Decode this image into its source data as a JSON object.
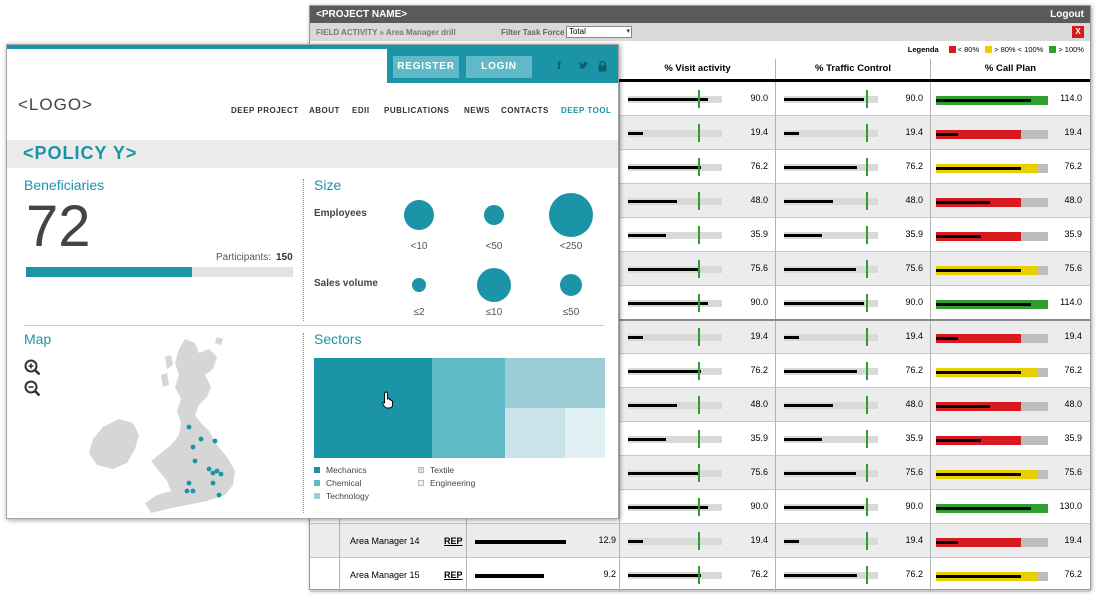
{
  "dashboard": {
    "project_name": "<PROJECT NAME>",
    "logout_label": "Logout",
    "breadcrumb": "FIELD ACTIVITY » Area Manager drill",
    "filter_label": "Filter Task Force",
    "filter_value": "Total",
    "close_label": "X",
    "legend": {
      "title": "Legenda",
      "items": [
        {
          "label": "< 80%",
          "color": "#d71920"
        },
        {
          "label": "> 80% < 100%",
          "color": "#e8d000"
        },
        {
          "label": "> 100%",
          "color": "#2f9d2f"
        }
      ]
    },
    "columns": [
      "% Visit activity",
      "% Traffic Control",
      "% Call Plan"
    ],
    "rows": [
      {
        "name": "",
        "rep": "",
        "first_val": "",
        "first_fill": 0,
        "visit": "90.0",
        "visit_fill": 0.85,
        "traffic": "90.0",
        "traffic_fill": 0.85,
        "callplan": "114.0",
        "cp_fill": 1.0,
        "cp_color": "#2f9d2f",
        "cp_bar": 0.85
      },
      {
        "name": "",
        "rep": "",
        "first_val": "",
        "first_fill": 0,
        "visit": "19.4",
        "visit_fill": 0.16,
        "traffic": "19.4",
        "traffic_fill": 0.16,
        "callplan": "19.4",
        "cp_fill": 0.76,
        "cp_color": "#d71920",
        "cp_bar": 0.2
      },
      {
        "name": "",
        "rep": "",
        "first_val": "",
        "first_fill": 0,
        "visit": "76.2",
        "visit_fill": 0.78,
        "traffic": "76.2",
        "traffic_fill": 0.78,
        "callplan": "76.2",
        "cp_fill": 0.9,
        "cp_color": "#e8d000",
        "cp_bar": 0.76
      },
      {
        "name": "",
        "rep": "",
        "first_val": "",
        "first_fill": 0,
        "visit": "48.0",
        "visit_fill": 0.52,
        "traffic": "48.0",
        "traffic_fill": 0.52,
        "callplan": "48.0",
        "cp_fill": 0.76,
        "cp_color": "#d71920",
        "cp_bar": 0.48
      },
      {
        "name": "",
        "rep": "",
        "first_val": "",
        "first_fill": 0,
        "visit": "35.9",
        "visit_fill": 0.4,
        "traffic": "35.9",
        "traffic_fill": 0.4,
        "callplan": "35.9",
        "cp_fill": 0.76,
        "cp_color": "#d71920",
        "cp_bar": 0.4
      },
      {
        "name": "",
        "rep": "",
        "first_val": "",
        "first_fill": 0,
        "visit": "75.6",
        "visit_fill": 0.77,
        "traffic": "75.6",
        "traffic_fill": 0.77,
        "callplan": "75.6",
        "cp_fill": 0.9,
        "cp_color": "#e8d000",
        "cp_bar": 0.76
      },
      {
        "name": "",
        "rep": "",
        "first_val": "",
        "first_fill": 0,
        "visit": "90.0",
        "visit_fill": 0.85,
        "traffic": "90.0",
        "traffic_fill": 0.85,
        "callplan": "114.0",
        "cp_fill": 1.0,
        "cp_color": "#2f9d2f",
        "cp_bar": 0.85
      },
      {
        "name": "",
        "rep": "",
        "first_val": "",
        "first_fill": 0,
        "visit": "19.4",
        "visit_fill": 0.16,
        "traffic": "19.4",
        "traffic_fill": 0.16,
        "callplan": "19.4",
        "cp_fill": 0.76,
        "cp_color": "#d71920",
        "cp_bar": 0.2
      },
      {
        "name": "",
        "rep": "",
        "first_val": "",
        "first_fill": 0,
        "visit": "76.2",
        "visit_fill": 0.78,
        "traffic": "76.2",
        "traffic_fill": 0.78,
        "callplan": "76.2",
        "cp_fill": 0.9,
        "cp_color": "#e8d000",
        "cp_bar": 0.76
      },
      {
        "name": "",
        "rep": "",
        "first_val": "",
        "first_fill": 0,
        "visit": "48.0",
        "visit_fill": 0.52,
        "traffic": "48.0",
        "traffic_fill": 0.52,
        "callplan": "48.0",
        "cp_fill": 0.76,
        "cp_color": "#d71920",
        "cp_bar": 0.48
      },
      {
        "name": "",
        "rep": "",
        "first_val": "",
        "first_fill": 0,
        "visit": "35.9",
        "visit_fill": 0.4,
        "traffic": "35.9",
        "traffic_fill": 0.4,
        "callplan": "35.9",
        "cp_fill": 0.76,
        "cp_color": "#d71920",
        "cp_bar": 0.4
      },
      {
        "name": "",
        "rep": "",
        "first_val": "",
        "first_fill": 0,
        "visit": "75.6",
        "visit_fill": 0.77,
        "traffic": "75.6",
        "traffic_fill": 0.77,
        "callplan": "75.6",
        "cp_fill": 0.9,
        "cp_color": "#e8d000",
        "cp_bar": 0.76
      },
      {
        "name": "",
        "rep": "",
        "first_val": "",
        "first_fill": 0,
        "visit": "90.0",
        "visit_fill": 0.85,
        "traffic": "90.0",
        "traffic_fill": 0.85,
        "callplan": "130.0",
        "cp_fill": 1.0,
        "cp_color": "#2f9d2f",
        "cp_bar": 0.85
      },
      {
        "name": "Area Manager 14",
        "rep": "REP",
        "first_val": "12.9",
        "first_fill": 0.7,
        "visit": "19.4",
        "visit_fill": 0.16,
        "traffic": "19.4",
        "traffic_fill": 0.16,
        "callplan": "19.4",
        "cp_fill": 0.76,
        "cp_color": "#d71920",
        "cp_bar": 0.2
      },
      {
        "name": "Area Manager 15",
        "rep": "REP",
        "first_val": "9.2",
        "first_fill": 0.53,
        "visit": "76.2",
        "visit_fill": 0.78,
        "traffic": "76.2",
        "traffic_fill": 0.78,
        "callplan": "76.2",
        "cp_fill": 0.9,
        "cp_color": "#e8d000",
        "cp_bar": 0.76
      }
    ]
  },
  "policy": {
    "auth": {
      "register": "REGISTER",
      "login": "LOGIN"
    },
    "social": {
      "facebook": "f",
      "twitter": "t",
      "lock": "lock"
    },
    "logo": "<LOGO>",
    "nav": [
      {
        "label": "DEEP PROJECT",
        "active": false
      },
      {
        "label": "ABOUT",
        "active": false
      },
      {
        "label": "EDII",
        "active": false
      },
      {
        "label": "PUBLICATIONS",
        "active": false
      },
      {
        "label": "NEWS",
        "active": false
      },
      {
        "label": "CONTACTS",
        "active": false
      },
      {
        "label": "DEEP TOOL",
        "active": true
      }
    ],
    "title": "<POLICY Y>",
    "beneficiaries": {
      "title": "Beneficiaries",
      "count": "72",
      "participants_label": "Participants:",
      "participants_value": "150",
      "progress_fraction": 0.62
    },
    "size": {
      "title": "Size",
      "employees_label": "Employees",
      "employees": [
        {
          "label": "<10",
          "rel": 0.7
        },
        {
          "label": "<50",
          "rel": 0.45
        },
        {
          "label": "<250",
          "rel": 1.0
        }
      ],
      "sales_label": "Sales volume",
      "sales": [
        {
          "label": "≤2",
          "rel": 0.35
        },
        {
          "label": "≤10",
          "rel": 0.9
        },
        {
          "label": "≤50",
          "rel": 0.6
        }
      ]
    },
    "map": {
      "title": "Map"
    },
    "sectors": {
      "title": "Sectors",
      "legend": [
        {
          "label": "Mechanics",
          "color": "#1a94a6"
        },
        {
          "label": "Chemical",
          "color": "#5fb9c7"
        },
        {
          "label": "Technology",
          "color": "#9ccdd6"
        },
        {
          "label": "Textile",
          "color": "#c9e4e9"
        },
        {
          "label": "Engineering",
          "color": "#dfeff2"
        }
      ]
    },
    "accent": "#1a94a6"
  }
}
